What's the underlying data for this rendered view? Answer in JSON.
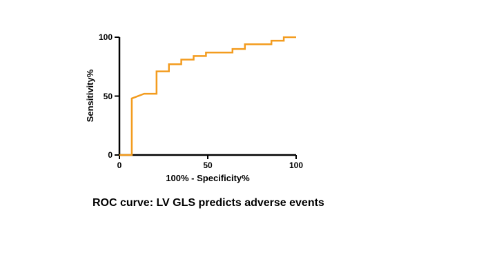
{
  "caption": "ROC curve: LV GLS predicts adverse events",
  "chart_data": {
    "type": "line",
    "title": "",
    "xlabel": "100% - Specificity%",
    "ylabel": "Sensitivity%",
    "xlim": [
      0,
      100
    ],
    "ylim": [
      0,
      100
    ],
    "x_ticks": [
      "0",
      "50",
      "100"
    ],
    "y_ticks": [
      "0",
      "50",
      "100"
    ],
    "grid": false,
    "legend": "none",
    "series": [
      {
        "name": "ROC",
        "color": "#F39C1F",
        "x": [
          0,
          7,
          7,
          14,
          21,
          21,
          28,
          28,
          35,
          35,
          42,
          42,
          49,
          49,
          64,
          64,
          71,
          71,
          86,
          86,
          93,
          93,
          100
        ],
        "y": [
          0,
          0,
          48,
          52,
          52,
          71,
          71,
          77,
          77,
          81,
          81,
          84,
          84,
          87,
          87,
          90,
          90,
          94,
          94,
          97,
          97,
          100,
          100
        ]
      }
    ]
  }
}
